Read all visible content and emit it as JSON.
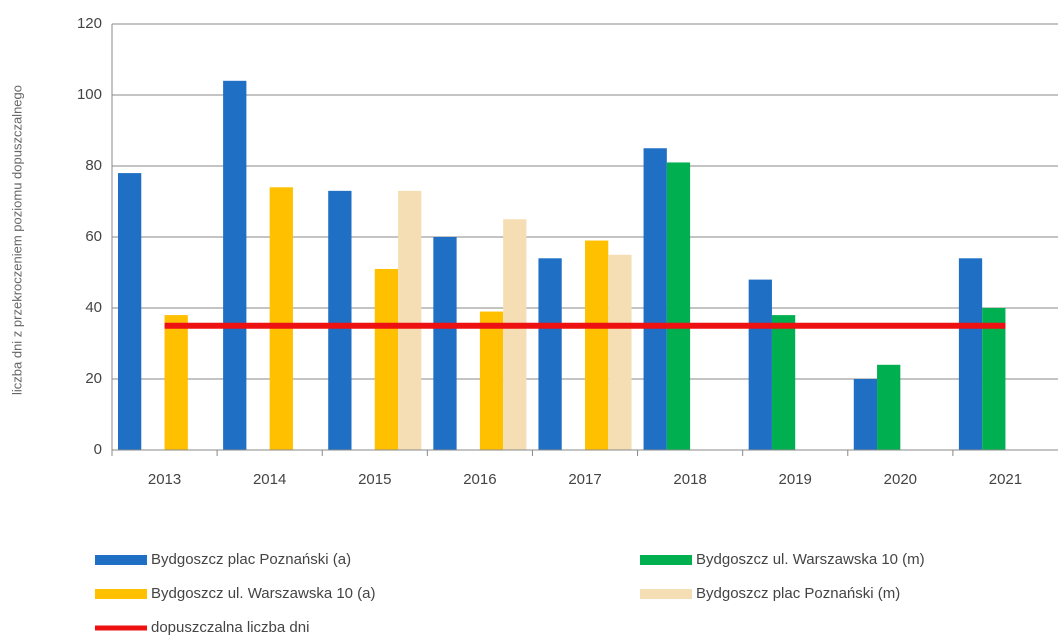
{
  "chart_data": {
    "type": "bar",
    "ylabel": "liczba dni z przekroczeniem poziomu dopuszczalnego",
    "categories": [
      "2013",
      "2014",
      "2015",
      "2016",
      "2017",
      "2018",
      "2019",
      "2020",
      "2021"
    ],
    "series": [
      {
        "name": "Bydgoszcz plac Poznański (a)",
        "color": "#1f6fc5",
        "values": [
          78,
          104,
          73,
          60,
          54,
          85,
          48,
          20,
          54
        ]
      },
      {
        "name": "Bydgoszcz ul. Warszawska 10 (m)",
        "color": "#00b050",
        "values": [
          null,
          null,
          null,
          null,
          null,
          81,
          38,
          24,
          40
        ]
      },
      {
        "name": "Bydgoszcz ul. Warszawska 10 (a)",
        "color": "#ffc000",
        "values": [
          38,
          74,
          51,
          39,
          59,
          null,
          null,
          null,
          null
        ]
      },
      {
        "name": "Bydgoszcz plac Poznański (m)",
        "color": "#f5deb3",
        "values": [
          null,
          null,
          73,
          65,
          55,
          null,
          null,
          null,
          null
        ]
      }
    ],
    "threshold": {
      "name": "dopuszczalna liczba dni",
      "value": 35,
      "color": "#ee1111"
    },
    "ylim": [
      0,
      120
    ],
    "yticks": [
      0,
      20,
      40,
      60,
      80,
      100,
      120
    ],
    "grid": true
  }
}
